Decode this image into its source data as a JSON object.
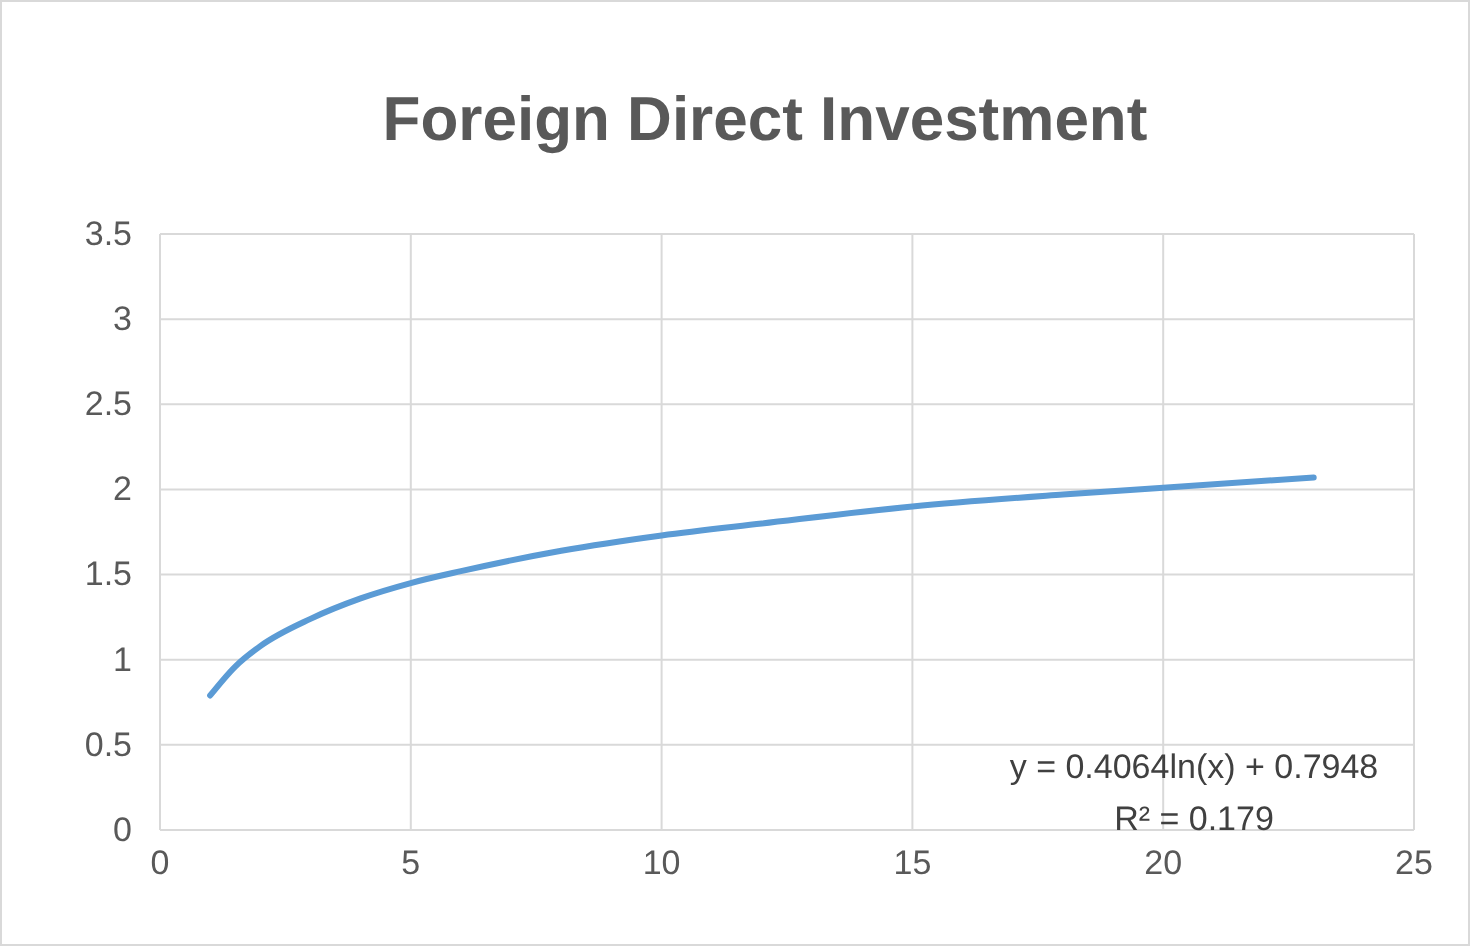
{
  "chart_data": {
    "type": "line",
    "title": "Foreign Direct Investment",
    "x": [
      1,
      1.5,
      2,
      3,
      4,
      5,
      6,
      8,
      10,
      12,
      15,
      18,
      20,
      23
    ],
    "series": [
      {
        "color": "#5b9bd5",
        "values": [
          0.79,
          0.96,
          1.08,
          1.24,
          1.36,
          1.45,
          1.52,
          1.64,
          1.73,
          1.8,
          1.9,
          1.97,
          2.01,
          2.07
        ]
      }
    ],
    "xlim": [
      0,
      25
    ],
    "xticks": [
      0,
      5,
      10,
      15,
      20,
      25
    ],
    "ylim": [
      0,
      3.5
    ],
    "yticks": [
      0,
      0.5,
      1,
      1.5,
      2,
      2.5,
      3,
      3.5
    ],
    "grid": true,
    "marker": "none",
    "line_style": "solid",
    "annotations": [
      "y = 0.4064ln(x) + 0.7948",
      "R² = 0.179"
    ]
  }
}
